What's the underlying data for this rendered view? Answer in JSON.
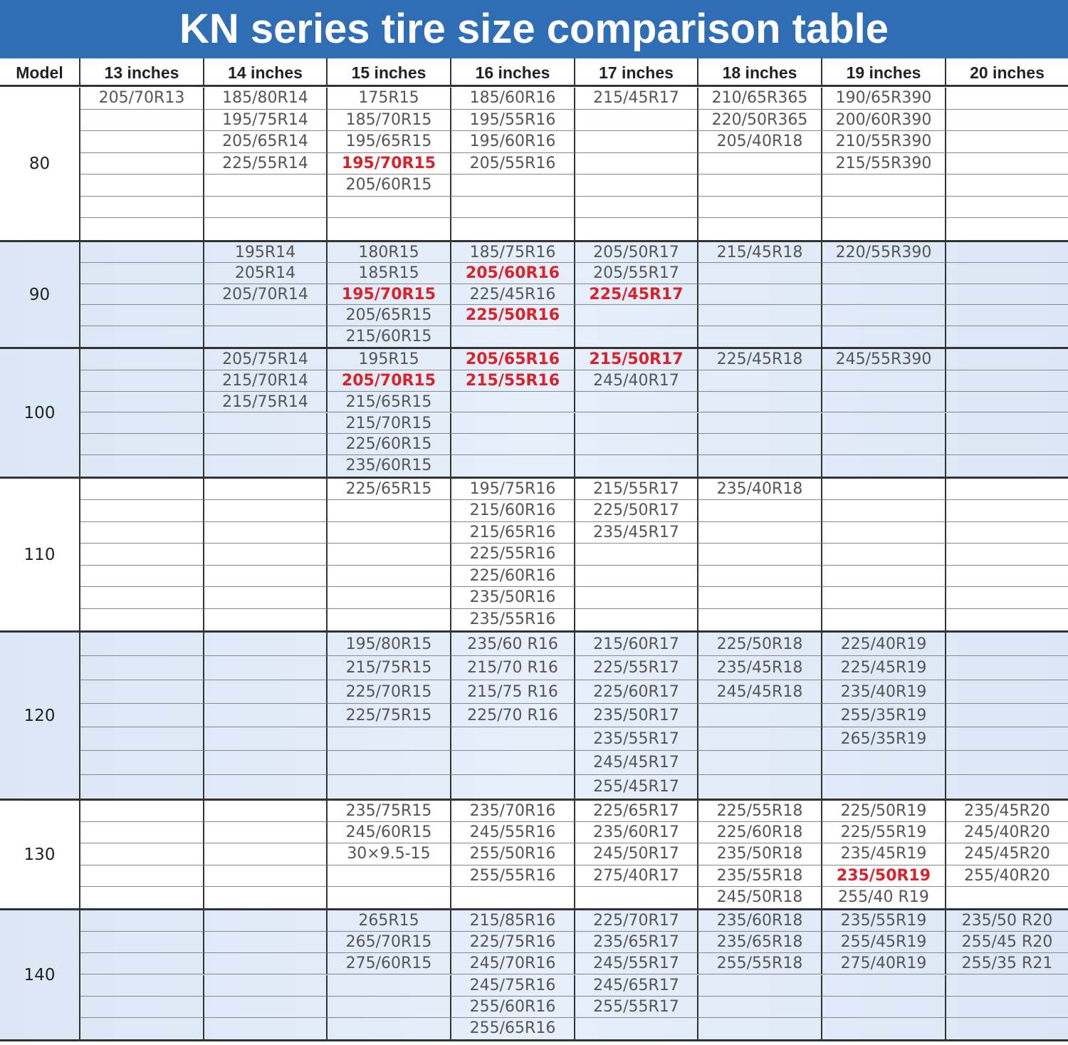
{
  "header": {
    "title": "KN series tire size comparison table"
  },
  "table": {
    "columns": [
      "Model",
      "13 inches",
      "14 inches",
      "15 inches",
      "16 inches",
      "17 inches",
      "18 inches",
      "19 inches",
      "20 inches"
    ],
    "highlight_color": "#d8232a",
    "groups": [
      {
        "model": "80",
        "shaded": false,
        "rows": [
          [
            "205/70R13",
            "185/80R14",
            "175R15",
            "185/60R16",
            "215/45R17",
            "210/65R365",
            "190/65R390",
            null
          ],
          [
            null,
            "195/75R14",
            "185/70R15",
            "195/55R16",
            null,
            "220/50R365",
            "200/60R390",
            null
          ],
          [
            null,
            "205/65R14",
            "195/65R15",
            "195/60R16",
            null,
            "205/40R18",
            "210/55R390",
            null
          ],
          [
            null,
            "225/55R14",
            {
              "text": "195/70R15",
              "highlight": true
            },
            "205/55R16",
            null,
            null,
            "215/55R390",
            null
          ],
          [
            null,
            null,
            "205/60R15",
            null,
            null,
            null,
            null,
            null
          ],
          [
            null,
            null,
            null,
            null,
            null,
            null,
            null,
            null
          ],
          [
            null,
            null,
            null,
            null,
            null,
            null,
            null,
            null
          ]
        ]
      },
      {
        "model": "90",
        "shaded": true,
        "rows": [
          [
            null,
            "195R14",
            "180R15",
            "185/75R16",
            "205/50R17",
            "215/45R18",
            "220/55R390",
            null
          ],
          [
            null,
            "205R14",
            "185R15",
            {
              "text": "205/60R16",
              "highlight": true
            },
            "205/55R17",
            null,
            null,
            null
          ],
          [
            null,
            "205/70R14",
            {
              "text": "195/70R15",
              "highlight": true
            },
            "225/45R16",
            {
              "text": "225/45R17",
              "highlight": true
            },
            null,
            null,
            null
          ],
          [
            null,
            null,
            "205/65R15",
            {
              "text": "225/50R16",
              "highlight": true
            },
            null,
            null,
            null,
            null
          ],
          [
            null,
            null,
            "215/60R15",
            null,
            null,
            null,
            null,
            null
          ]
        ]
      },
      {
        "model": "100",
        "shaded": true,
        "rows": [
          [
            null,
            "205/75R14",
            "195R15",
            {
              "text": "205/65R16",
              "highlight": true
            },
            {
              "text": "215/50R17",
              "highlight": true
            },
            "225/45R18",
            "245/55R390",
            null
          ],
          [
            null,
            "215/70R14",
            {
              "text": "205/70R15",
              "highlight": true
            },
            {
              "text": "215/55R16",
              "highlight": true
            },
            "245/40R17",
            null,
            null,
            null
          ],
          [
            null,
            "215/75R14",
            "215/65R15",
            null,
            null,
            null,
            null,
            null
          ],
          [
            null,
            null,
            "215/70R15",
            null,
            null,
            null,
            null,
            null
          ],
          [
            null,
            null,
            "225/60R15",
            null,
            null,
            null,
            null,
            null
          ],
          [
            null,
            null,
            "235/60R15",
            null,
            null,
            null,
            null,
            null
          ]
        ]
      },
      {
        "model": "110",
        "shaded": false,
        "rows": [
          [
            null,
            null,
            "225/65R15",
            "195/75R16",
            "215/55R17",
            "235/40R18",
            null,
            null
          ],
          [
            null,
            null,
            null,
            "215/60R16",
            "225/50R17",
            null,
            null,
            null
          ],
          [
            null,
            null,
            null,
            "215/65R16",
            "235/45R17",
            null,
            null,
            null
          ],
          [
            null,
            null,
            null,
            "225/55R16",
            null,
            null,
            null,
            null
          ],
          [
            null,
            null,
            null,
            "225/60R16",
            null,
            null,
            null,
            null
          ],
          [
            null,
            null,
            null,
            "235/50R16",
            null,
            null,
            null,
            null
          ],
          [
            null,
            null,
            null,
            "235/55R16",
            null,
            null,
            null,
            null
          ]
        ]
      },
      {
        "model": "120",
        "shaded": true,
        "rows": [
          [
            null,
            null,
            "195/80R15",
            "235/60 R16",
            "215/60R17",
            "225/50R18",
            "225/40R19",
            null
          ],
          [
            null,
            null,
            "215/75R15",
            "215/70 R16",
            "225/55R17",
            "235/45R18",
            "225/45R19",
            null
          ],
          [
            null,
            null,
            "225/70R15",
            "215/75 R16",
            "225/60R17",
            "245/45R18",
            "235/40R19",
            null
          ],
          [
            null,
            null,
            "225/75R15",
            "225/70 R16",
            "235/50R17",
            null,
            "255/35R19",
            null
          ],
          [
            null,
            null,
            null,
            null,
            "235/55R17",
            null,
            "265/35R19",
            null
          ],
          [
            null,
            null,
            null,
            null,
            "245/45R17",
            null,
            null,
            null
          ],
          [
            null,
            null,
            null,
            null,
            "255/45R17",
            null,
            null,
            null
          ]
        ]
      },
      {
        "model": "130",
        "shaded": false,
        "rows": [
          [
            null,
            null,
            "235/75R15",
            "235/70R16",
            "225/65R17",
            "225/55R18",
            "225/50R19",
            "235/45R20"
          ],
          [
            null,
            null,
            "245/60R15",
            "245/55R16",
            "235/60R17",
            "225/60R18",
            "225/55R19",
            "245/40R20"
          ],
          [
            null,
            null,
            "30×9.5-15",
            "255/50R16",
            "245/50R17",
            "235/50R18",
            "235/45R19",
            "245/45R20"
          ],
          [
            null,
            null,
            null,
            "255/55R16",
            "275/40R17",
            "235/55R18",
            {
              "text": "235/50R19",
              "highlight": true
            },
            "255/40R20"
          ],
          [
            null,
            null,
            null,
            null,
            null,
            "245/50R18",
            "255/40 R19",
            null
          ]
        ]
      },
      {
        "model": "140",
        "shaded": true,
        "rows": [
          [
            null,
            null,
            "265R15",
            "215/85R16",
            "225/70R17",
            "235/60R18",
            "235/55R19",
            "235/50 R20"
          ],
          [
            null,
            null,
            "265/70R15",
            "225/75R16",
            "235/65R17",
            "235/65R18",
            "255/45R19",
            "255/45 R20"
          ],
          [
            null,
            null,
            "275/60R15",
            "245/70R16",
            "245/55R17",
            "255/55R18",
            "275/40R19",
            "255/35 R21"
          ],
          [
            null,
            null,
            null,
            "245/75R16",
            "245/65R17",
            null,
            null,
            null
          ],
          [
            null,
            null,
            null,
            "255/60R16",
            "255/55R17",
            null,
            null,
            null
          ],
          [
            null,
            null,
            null,
            "255/65R16",
            null,
            null,
            null,
            null
          ]
        ]
      }
    ]
  }
}
